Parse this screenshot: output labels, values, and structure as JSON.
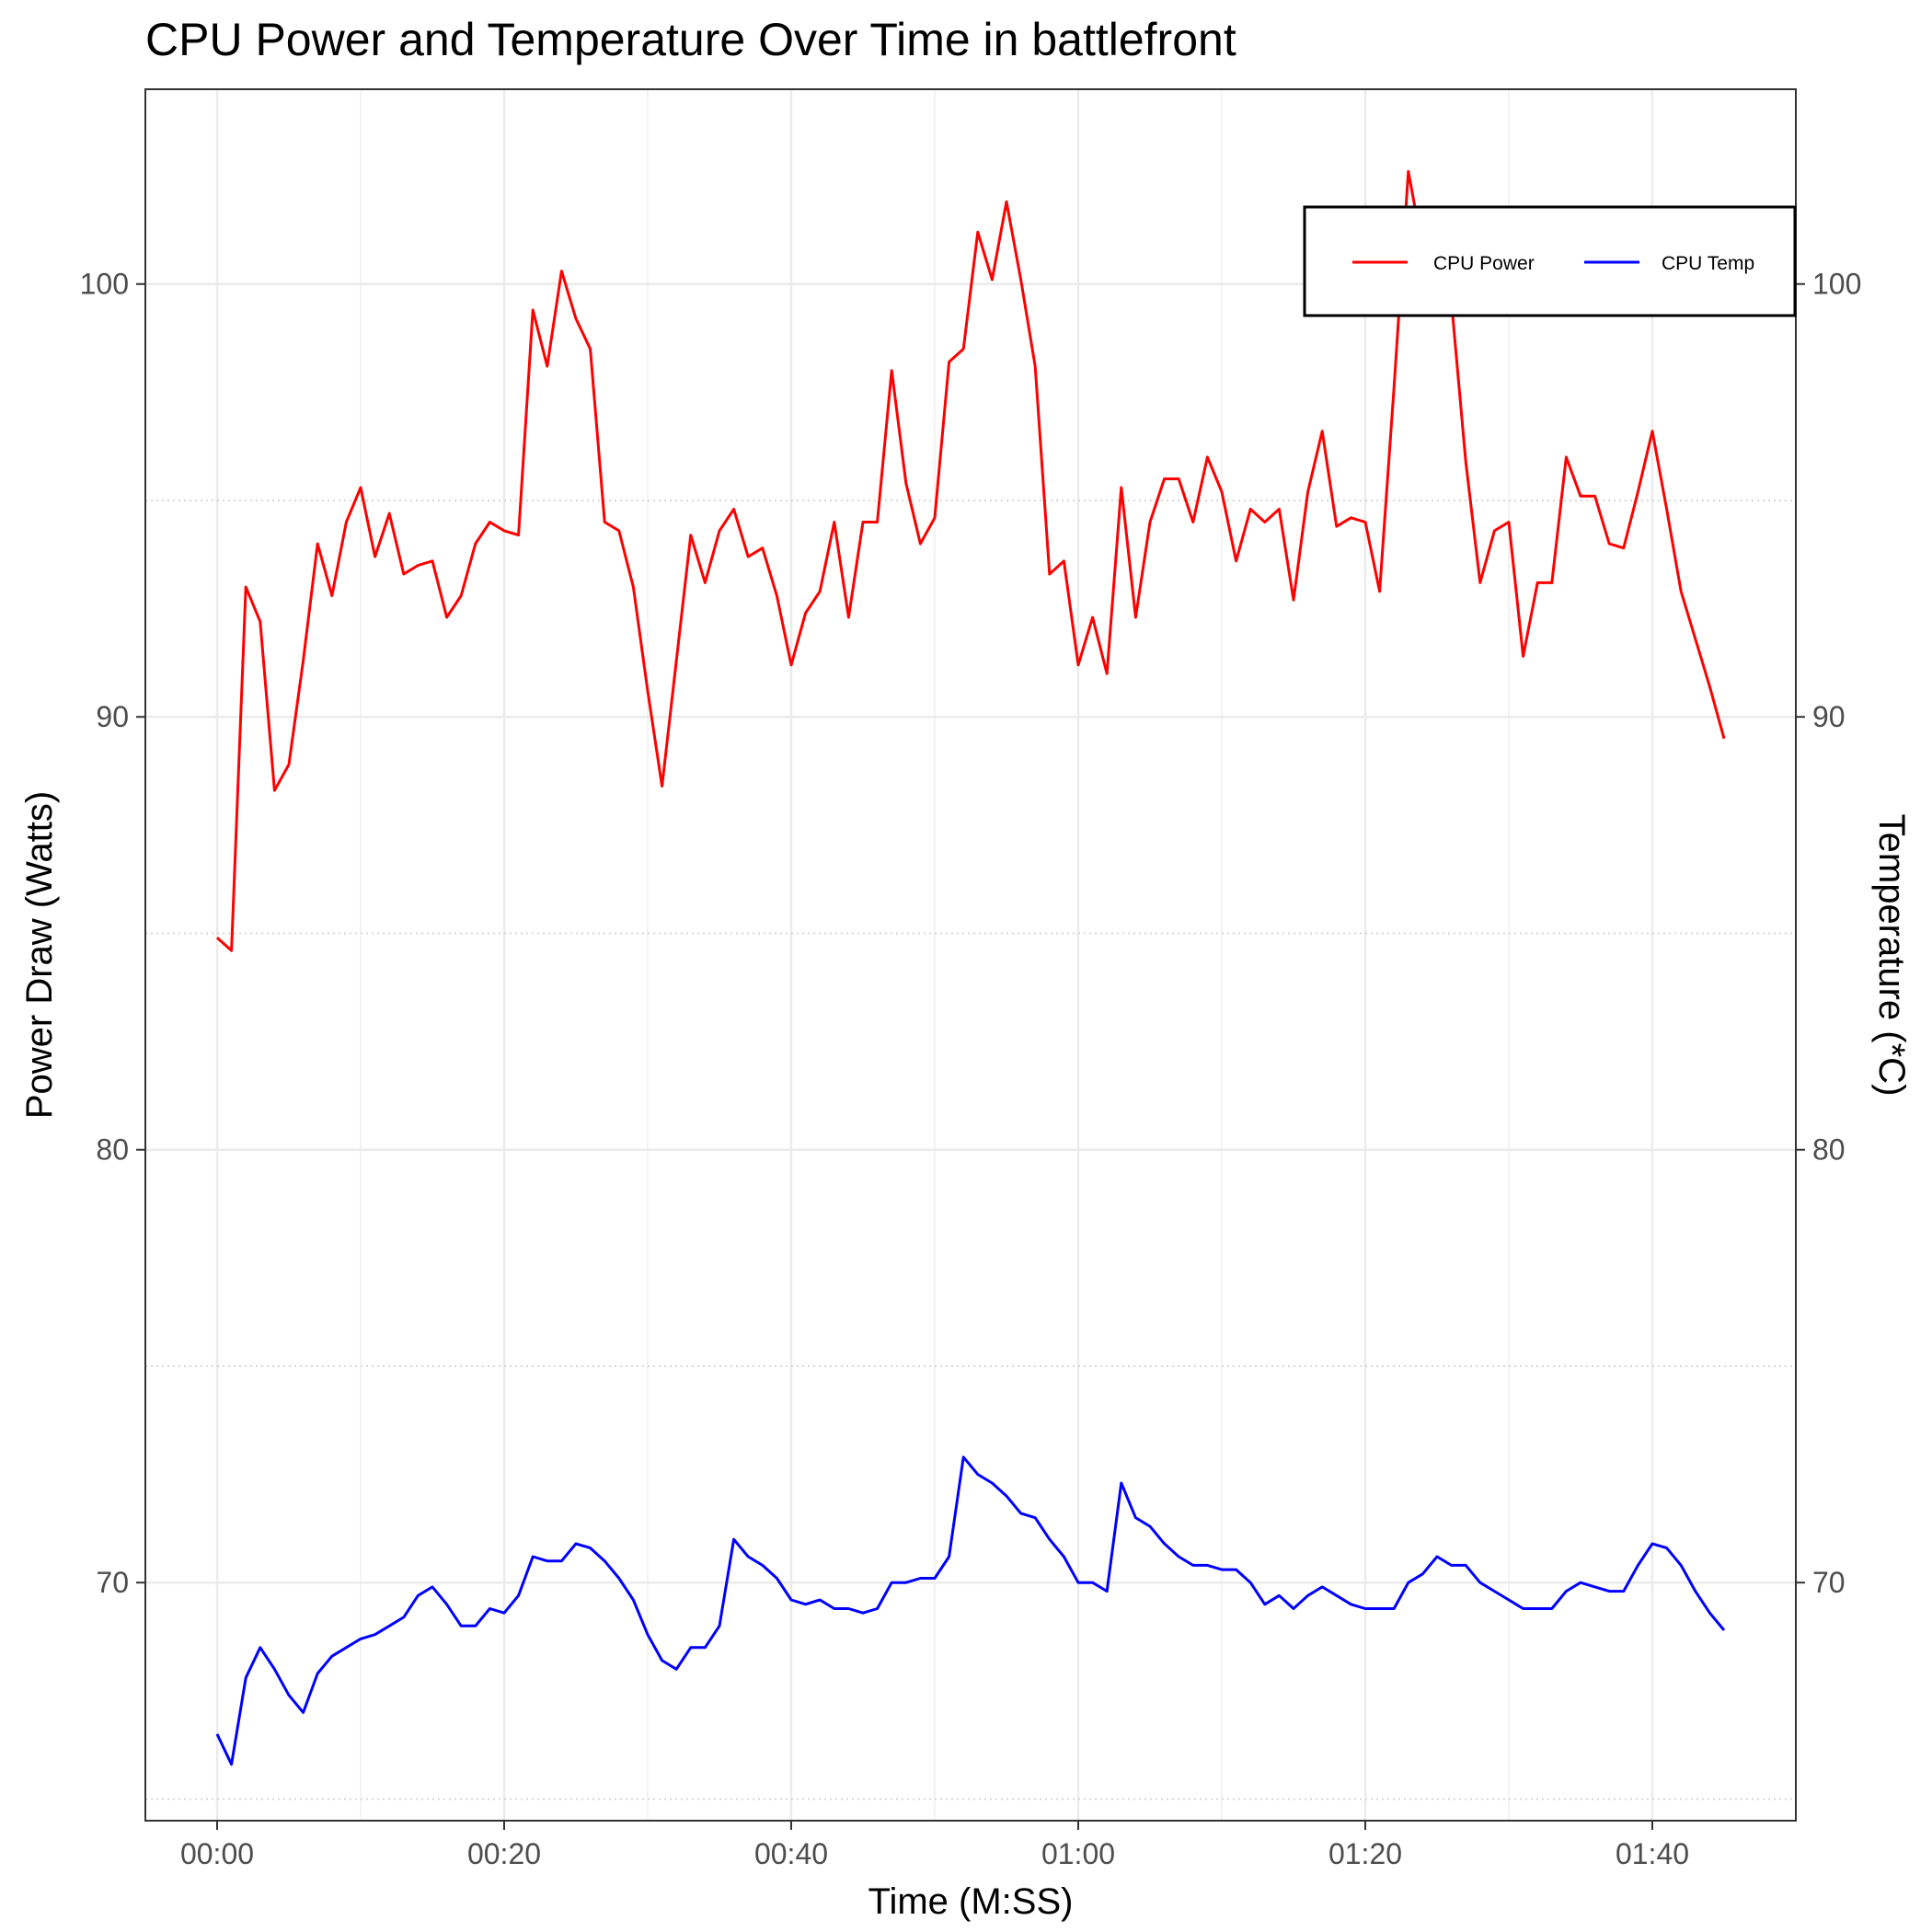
{
  "chart_data": {
    "type": "line",
    "title": "CPU Power and Temperature Over Time in battlefront",
    "xlabel": "Time (M:SS)",
    "ylabel": "Power Draw (Watts)",
    "ylabel_right": "Temperature (*C)",
    "x_unit": "seconds",
    "xlim": [
      -5,
      110
    ],
    "ylim": [
      64.5,
      104.5
    ],
    "x_ticks": [
      0,
      20,
      40,
      60,
      80,
      100
    ],
    "x_tick_labels": [
      "00:00",
      "00:20",
      "00:40",
      "01:00",
      "01:20",
      "01:40"
    ],
    "y_ticks": [
      70,
      80,
      90,
      100
    ],
    "y_tick_labels": [
      "70",
      "80",
      "90",
      "100"
    ],
    "y_right_ticks": [
      70,
      80,
      90,
      100
    ],
    "y_right_tick_labels": [
      "70",
      "80",
      "90",
      "100"
    ],
    "grid": true,
    "legend_position": "top-right",
    "x": [
      0,
      1,
      2,
      3,
      4,
      5,
      6,
      7,
      8,
      9,
      10,
      11,
      12,
      13,
      14,
      15,
      16,
      17,
      18,
      19,
      20,
      21,
      22,
      23,
      24,
      25,
      26,
      27,
      28,
      29,
      30,
      31,
      32,
      33,
      34,
      35,
      36,
      37,
      38,
      39,
      40,
      41,
      42,
      43,
      44,
      45,
      46,
      47,
      48,
      49,
      50,
      51,
      52,
      53,
      54,
      55,
      56,
      57,
      58,
      59,
      60,
      61,
      62,
      63,
      64,
      65,
      66,
      67,
      68,
      69,
      70,
      71,
      72,
      73,
      74,
      75,
      76,
      77,
      78,
      79,
      80,
      81,
      82,
      83,
      84,
      85,
      86,
      87,
      88,
      89,
      90,
      91,
      92,
      93,
      94,
      95,
      96,
      97,
      98,
      99,
      100,
      101,
      102,
      103,
      104,
      105
    ],
    "series": [
      {
        "name": "CPU Power",
        "color": "#ff0000",
        "values": [
          84.9,
          84.6,
          93.0,
          92.2,
          88.3,
          88.9,
          91.3,
          94.0,
          92.8,
          94.5,
          95.3,
          93.7,
          94.7,
          93.3,
          93.5,
          93.6,
          92.3,
          92.8,
          94.0,
          94.5,
          94.3,
          94.2,
          99.4,
          98.1,
          100.3,
          99.2,
          98.5,
          94.5,
          94.3,
          93.0,
          90.6,
          88.4,
          91.3,
          94.2,
          93.1,
          94.3,
          94.8,
          93.7,
          93.9,
          92.8,
          91.2,
          92.4,
          92.9,
          94.5,
          92.3,
          94.5,
          94.5,
          98.0,
          95.4,
          94.0,
          94.6,
          98.2,
          98.5,
          101.2,
          100.1,
          101.9,
          100.1,
          98.1,
          93.3,
          93.6,
          91.2,
          92.3,
          91.0,
          95.3,
          92.3,
          94.5,
          95.5,
          95.5,
          94.5,
          96.0,
          95.2,
          93.6,
          94.8,
          94.5,
          94.8,
          92.7,
          95.2,
          96.6,
          94.4,
          94.6,
          94.5,
          92.9,
          97.6,
          102.6,
          100.8,
          100.3,
          99.6,
          95.9,
          93.1,
          94.3,
          94.5,
          91.4,
          93.1,
          93.1,
          96.0,
          95.1,
          95.1,
          94.0,
          93.9,
          95.2,
          96.6,
          94.8,
          92.9,
          91.8,
          90.7,
          89.5
        ]
      },
      {
        "name": "CPU Temp",
        "color": "#0000ff",
        "values": [
          66.5,
          65.8,
          67.8,
          68.5,
          68.0,
          67.4,
          67.0,
          67.9,
          68.3,
          68.5,
          68.7,
          68.8,
          69.0,
          69.2,
          69.7,
          69.9,
          69.5,
          69.0,
          69.0,
          69.4,
          69.3,
          69.7,
          70.6,
          70.5,
          70.5,
          70.9,
          70.8,
          70.5,
          70.1,
          69.6,
          68.8,
          68.2,
          68.0,
          68.5,
          68.5,
          69.0,
          71.0,
          70.6,
          70.4,
          70.1,
          69.6,
          69.5,
          69.6,
          69.4,
          69.4,
          69.3,
          69.4,
          70.0,
          70.0,
          70.1,
          70.1,
          70.6,
          72.9,
          72.5,
          72.3,
          72.0,
          71.6,
          71.5,
          71.0,
          70.6,
          70.0,
          70.0,
          69.8,
          72.3,
          71.5,
          71.3,
          70.9,
          70.6,
          70.4,
          70.4,
          70.3,
          70.3,
          70.0,
          69.5,
          69.7,
          69.4,
          69.7,
          69.9,
          69.7,
          69.5,
          69.4,
          69.4,
          69.4,
          70.0,
          70.2,
          70.6,
          70.4,
          70.4,
          70.0,
          69.8,
          69.6,
          69.4,
          69.4,
          69.4,
          69.8,
          70.0,
          69.9,
          69.8,
          69.8,
          70.4,
          70.9,
          70.8,
          70.4,
          69.8,
          69.3,
          68.9
        ]
      }
    ]
  }
}
